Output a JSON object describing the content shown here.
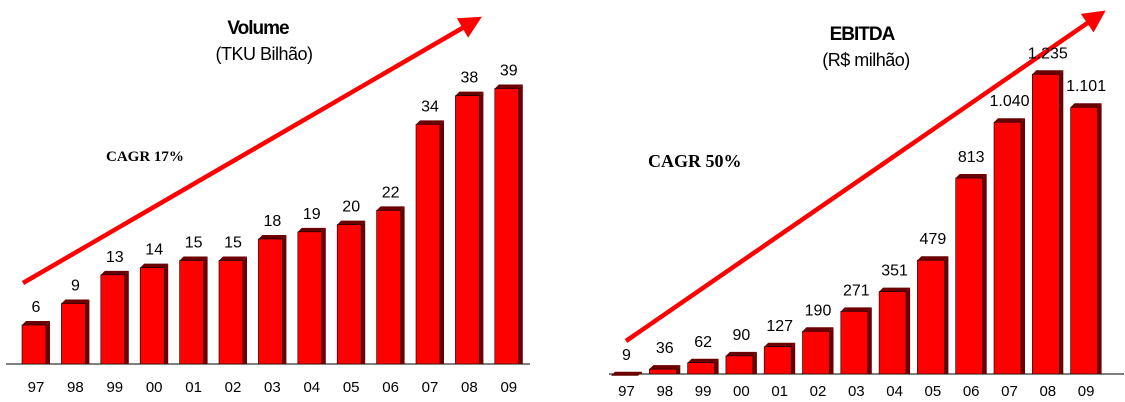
{
  "colors": {
    "bar": "#ff0000",
    "bar_side": "#6a0000",
    "arrow": "#ff0000",
    "axis": "#000000"
  },
  "chart_data": [
    {
      "type": "bar",
      "title": "Volume",
      "subtitle": "(TKU Bilhão)",
      "annotation": "CAGR 17%",
      "categories": [
        "97",
        "98",
        "99",
        "00",
        "01",
        "02",
        "03",
        "04",
        "05",
        "06",
        "07",
        "08",
        "09"
      ],
      "values": [
        6,
        9,
        13,
        14,
        15,
        15,
        18,
        19,
        20,
        22,
        34,
        38,
        39
      ],
      "labels": [
        "6",
        "9",
        "13",
        "14",
        "15",
        "15",
        "18",
        "19",
        "20",
        "22",
        "34",
        "38",
        "39"
      ],
      "ylim": [
        0,
        48
      ],
      "grid": false,
      "legend": "none"
    },
    {
      "type": "bar",
      "title": "EBITDA",
      "subtitle": "(R$ milhão)",
      "annotation": "CAGR 50%",
      "categories": [
        "97",
        "98",
        "99",
        "00",
        "01",
        "02",
        "03",
        "04",
        "05",
        "06",
        "07",
        "08",
        "09"
      ],
      "values": [
        9,
        36,
        62,
        90,
        127,
        190,
        271,
        351,
        479,
        813,
        1040,
        1235,
        1101
      ],
      "labels": [
        "9",
        "36",
        "62",
        "90",
        "127",
        "190",
        "271",
        "351",
        "479",
        "813",
        "1.040",
        "1.235",
        "1.101"
      ],
      "ylim": [
        0,
        1480
      ],
      "grid": false,
      "legend": "none"
    }
  ]
}
